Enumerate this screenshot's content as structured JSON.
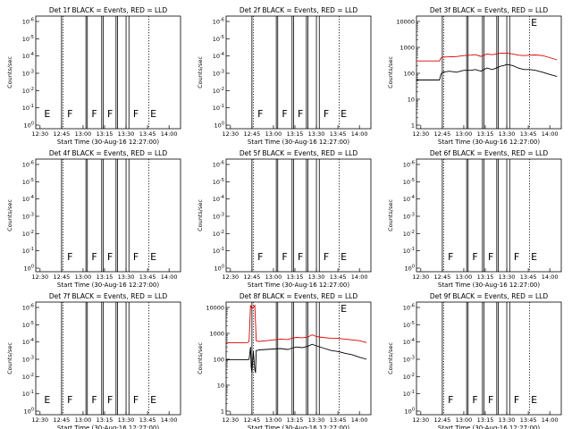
{
  "figure": {
    "start_time_label": "Start Time (30-Aug-16 12:27:00)",
    "ylabel": "Counts/sec",
    "x_ticks": [
      "12:30",
      "12:45",
      "13:00",
      "13:15",
      "13:30",
      "13:45",
      "14:00"
    ],
    "colors": {
      "events": "#000000",
      "lld": "#dd0000"
    }
  },
  "chart_data": [
    {
      "type": "line",
      "title": "Det 1f BLACK = Events, RED = LLD",
      "xlabel": "Start Time (30-Aug-16 12:27:00)",
      "ylabel": "Counts/sec",
      "x_ticks": [
        "12:30",
        "12:45",
        "13:00",
        "13:15",
        "13:30",
        "13:45",
        "14:00"
      ],
      "y_tick_labels": [
        "10^0",
        "10^-1",
        "10^-2",
        "10^-3",
        "10^-4",
        "10^-5",
        "10^-6"
      ],
      "y_scale": "log-empty",
      "attenuator_lines_at": [
        "12:45",
        "13:02",
        "13:03",
        "13:13",
        "13:14",
        "13:23",
        "13:24",
        "13:30",
        "13:32"
      ],
      "dotted_lines_at": [
        "12:45",
        "13:45"
      ],
      "state_labels": [
        {
          "text": "E",
          "at": "12:31"
        },
        {
          "text": "F",
          "at": "12:47"
        },
        {
          "text": "F",
          "at": "13:04"
        },
        {
          "text": "F",
          "at": "13:15"
        },
        {
          "text": "F",
          "at": "13:33"
        },
        {
          "text": "E",
          "at": "13:45"
        }
      ],
      "series": []
    },
    {
      "type": "line",
      "title": "Det 2f BLACK = Events, RED = LLD",
      "xlabel": "Start Time (30-Aug-16 12:27:00)",
      "ylabel": "Counts/sec",
      "x_ticks": [
        "12:30",
        "12:45",
        "13:00",
        "13:15",
        "13:30",
        "13:45",
        "14:00"
      ],
      "y_tick_labels": [
        "10^0",
        "10^-1",
        "10^-2",
        "10^-3",
        "10^-4",
        "10^-5",
        "10^-6"
      ],
      "y_scale": "log-empty",
      "attenuator_lines_at": [
        "12:45",
        "13:02",
        "13:03",
        "13:13",
        "13:14",
        "13:23",
        "13:24",
        "13:30",
        "13:32"
      ],
      "dotted_lines_at": [
        "12:45",
        "13:45"
      ],
      "state_labels": [
        {
          "text": "F",
          "at": "12:47"
        },
        {
          "text": "F",
          "at": "13:04"
        },
        {
          "text": "F",
          "at": "13:15"
        },
        {
          "text": "F",
          "at": "13:33"
        },
        {
          "text": "E",
          "at": "13:45"
        }
      ],
      "series": []
    },
    {
      "type": "line",
      "title": "Det 3f BLACK = Events, RED = LLD",
      "xlabel": "Start Time (30-Aug-16 12:27:00)",
      "ylabel": "Counts/sec",
      "x_ticks": [
        "12:30",
        "12:45",
        "13:00",
        "13:15",
        "13:30",
        "13:45",
        "14:00"
      ],
      "y_tick_labels": [
        "1",
        "10",
        "100",
        "1000",
        "10000"
      ],
      "y_scale": "log",
      "attenuator_lines_at": [
        "12:45",
        "13:02",
        "13:03",
        "13:13",
        "13:14",
        "13:23",
        "13:24",
        "13:30",
        "13:32"
      ],
      "dotted_lines_at": [
        "12:45",
        "13:45"
      ],
      "state_labels": [
        {
          "text": "E",
          "at": "13:45"
        }
      ],
      "series": [
        {
          "color": "#000000",
          "x": [
            "12:27",
            "12:35",
            "12:43",
            "12:44",
            "12:45",
            "12:50",
            "12:55",
            "13:00",
            "13:05",
            "13:08",
            "13:12",
            "13:16",
            "13:20",
            "13:24",
            "13:26",
            "13:28",
            "13:30",
            "13:34",
            "13:38",
            "13:42",
            "13:46",
            "13:50",
            "13:55",
            "14:00",
            "14:05"
          ],
          "values": [
            55,
            55,
            55,
            90,
            110,
            120,
            110,
            130,
            130,
            140,
            120,
            160,
            140,
            170,
            190,
            200,
            220,
            200,
            160,
            140,
            140,
            130,
            110,
            90,
            75
          ]
        },
        {
          "color": "#dd0000",
          "x": [
            "12:27",
            "12:35",
            "12:43",
            "12:44",
            "12:45",
            "12:50",
            "12:55",
            "13:00",
            "13:05",
            "13:08",
            "13:12",
            "13:16",
            "13:20",
            "13:24",
            "13:26",
            "13:28",
            "13:30",
            "13:34",
            "13:38",
            "13:42",
            "13:46",
            "13:50",
            "13:55",
            "14:00",
            "14:05"
          ],
          "values": [
            300,
            300,
            300,
            380,
            420,
            430,
            440,
            480,
            500,
            520,
            450,
            550,
            520,
            580,
            600,
            590,
            600,
            560,
            500,
            480,
            500,
            510,
            480,
            400,
            330
          ]
        }
      ]
    },
    {
      "type": "line",
      "title": "Det 4f BLACK = Events, RED = LLD",
      "xlabel": "Start Time (30-Aug-16 12:27:00)",
      "ylabel": "Counts/sec",
      "x_ticks": [
        "12:30",
        "12:45",
        "13:00",
        "13:15",
        "13:30",
        "13:45",
        "14:00"
      ],
      "y_tick_labels": [
        "10^0",
        "10^-1",
        "10^-2",
        "10^-3",
        "10^-4",
        "10^-5",
        "10^-6"
      ],
      "y_scale": "log-empty",
      "attenuator_lines_at": [
        "12:45",
        "13:02",
        "13:03",
        "13:13",
        "13:14",
        "13:23",
        "13:24",
        "13:30",
        "13:32"
      ],
      "dotted_lines_at": [
        "12:45",
        "13:45"
      ],
      "state_labels": [
        {
          "text": "F",
          "at": "12:47"
        },
        {
          "text": "F",
          "at": "13:04"
        },
        {
          "text": "F",
          "at": "13:15"
        },
        {
          "text": "F",
          "at": "13:33"
        },
        {
          "text": "E",
          "at": "13:45"
        }
      ],
      "series": []
    },
    {
      "type": "line",
      "title": "Det 5f BLACK = Events, RED = LLD",
      "xlabel": "Start Time (30-Aug-16 12:27:00)",
      "ylabel": "Counts/sec",
      "x_ticks": [
        "12:30",
        "12:45",
        "13:00",
        "13:15",
        "13:30",
        "13:45",
        "14:00"
      ],
      "y_tick_labels": [
        "10^0",
        "10^-1",
        "10^-2",
        "10^-3",
        "10^-4",
        "10^-5",
        "10^-6"
      ],
      "y_scale": "log-empty",
      "attenuator_lines_at": [
        "12:45",
        "13:02",
        "13:03",
        "13:13",
        "13:14",
        "13:23",
        "13:24",
        "13:30",
        "13:32"
      ],
      "dotted_lines_at": [
        "12:45",
        "13:45"
      ],
      "state_labels": [
        {
          "text": "F",
          "at": "12:47"
        },
        {
          "text": "F",
          "at": "13:04"
        },
        {
          "text": "F",
          "at": "13:15"
        },
        {
          "text": "F",
          "at": "13:33"
        },
        {
          "text": "E",
          "at": "13:45"
        }
      ],
      "series": []
    },
    {
      "type": "line",
      "title": "Det 6f BLACK = Events, RED = LLD",
      "xlabel": "Start Time (30-Aug-16 12:27:00)",
      "ylabel": "Counts/sec",
      "x_ticks": [
        "12:30",
        "12:45",
        "13:00",
        "13:15",
        "13:30",
        "13:45",
        "14:00"
      ],
      "y_tick_labels": [
        "10^0",
        "10^-1",
        "10^-2",
        "10^-3",
        "10^-4",
        "10^-5",
        "10^-6"
      ],
      "y_scale": "log-empty",
      "attenuator_lines_at": [
        "12:45",
        "13:02",
        "13:03",
        "13:13",
        "13:14",
        "13:23",
        "13:24",
        "13:30",
        "13:32"
      ],
      "dotted_lines_at": [
        "12:45",
        "13:45"
      ],
      "state_labels": [
        {
          "text": "F",
          "at": "12:47"
        },
        {
          "text": "F",
          "at": "13:04"
        },
        {
          "text": "F",
          "at": "13:15"
        },
        {
          "text": "F",
          "at": "13:33"
        },
        {
          "text": "E",
          "at": "13:45"
        }
      ],
      "series": []
    },
    {
      "type": "line",
      "title": "Det 7f BLACK = Events, RED = LLD",
      "xlabel": "Start Time (30-Aug-16 12:27:00)",
      "ylabel": "Counts/sec",
      "x_ticks": [
        "12:30",
        "12:45",
        "13:00",
        "13:15",
        "13:30",
        "13:45",
        "14:00"
      ],
      "y_tick_labels": [
        "10^0",
        "10^-1",
        "10^-2",
        "10^-3",
        "10^-4",
        "10^-5",
        "10^-6"
      ],
      "y_scale": "log-empty",
      "attenuator_lines_at": [
        "12:45",
        "13:02",
        "13:03",
        "13:13",
        "13:14",
        "13:23",
        "13:24",
        "13:30",
        "13:32"
      ],
      "dotted_lines_at": [
        "12:45",
        "13:45"
      ],
      "state_labels": [
        {
          "text": "E",
          "at": "12:31"
        },
        {
          "text": "F",
          "at": "12:47"
        },
        {
          "text": "F",
          "at": "13:04"
        },
        {
          "text": "F",
          "at": "13:15"
        },
        {
          "text": "F",
          "at": "13:33"
        },
        {
          "text": "E",
          "at": "13:45"
        }
      ],
      "series": []
    },
    {
      "type": "line",
      "title": "Det 8f BLACK = Events, RED = LLD",
      "xlabel": "Start Time (30-Aug-16 12:27:00)",
      "ylabel": "Counts/sec",
      "x_ticks": [
        "12:30",
        "12:45",
        "13:00",
        "13:15",
        "13:30",
        "13:45",
        "14:00"
      ],
      "y_tick_labels": [
        "1",
        "10",
        "100",
        "1000",
        "10000"
      ],
      "y_scale": "log",
      "attenuator_lines_at": [
        "12:45",
        "13:02",
        "13:03",
        "13:13",
        "13:14",
        "13:23",
        "13:24",
        "13:30",
        "13:32"
      ],
      "dotted_lines_at": [
        "12:45",
        "13:45"
      ],
      "state_labels": [
        {
          "text": "E",
          "at": "13:45"
        }
      ],
      "series": [
        {
          "color": "#000000",
          "x": [
            "12:27",
            "12:35",
            "12:42",
            "12:43",
            "12:44",
            "12:44.5",
            "12:45",
            "12:46",
            "12:47",
            "12:47.5",
            "12:48",
            "12:49",
            "12:50",
            "12:55",
            "13:00",
            "13:05",
            "13:10",
            "13:13",
            "13:16",
            "13:20",
            "13:24",
            "13:27",
            "13:30",
            "13:34",
            "13:40",
            "13:45",
            "13:50",
            "13:55",
            "14:00",
            "14:05"
          ],
          "values": [
            95,
            95,
            95,
            100,
            300,
            50,
            30,
            200,
            40,
            30,
            220,
            220,
            230,
            240,
            250,
            260,
            240,
            270,
            300,
            280,
            320,
            380,
            330,
            280,
            220,
            200,
            170,
            150,
            120,
            100
          ]
        },
        {
          "color": "#dd0000",
          "x": [
            "12:27",
            "12:35",
            "12:42",
            "12:43",
            "12:44",
            "12:45",
            "12:46",
            "12:47",
            "12:48",
            "12:49",
            "12:50",
            "12:55",
            "13:00",
            "13:05",
            "13:10",
            "13:13",
            "13:16",
            "13:20",
            "13:24",
            "13:27",
            "13:30",
            "13:34",
            "13:40",
            "13:45",
            "13:50",
            "13:55",
            "14:00",
            "14:05"
          ],
          "values": [
            430,
            430,
            440,
            500,
            12000,
            9000,
            10000,
            12000,
            520,
            500,
            490,
            520,
            560,
            600,
            580,
            650,
            700,
            680,
            720,
            880,
            760,
            700,
            650,
            640,
            600,
            560,
            520,
            440
          ]
        }
      ]
    },
    {
      "type": "line",
      "title": "Det 9f BLACK = Events, RED = LLD",
      "xlabel": "Start Time (30-Aug-16 12:27:00)",
      "ylabel": "Counts/sec",
      "x_ticks": [
        "12:30",
        "12:45",
        "13:00",
        "13:15",
        "13:30",
        "13:45",
        "14:00"
      ],
      "y_tick_labels": [
        "10^0",
        "10^-1",
        "10^-2",
        "10^-3",
        "10^-4",
        "10^-5",
        "10^-6"
      ],
      "y_scale": "log-empty",
      "attenuator_lines_at": [
        "12:45",
        "13:02",
        "13:03",
        "13:13",
        "13:14",
        "13:23",
        "13:24",
        "13:30",
        "13:32"
      ],
      "dotted_lines_at": [
        "12:45",
        "13:45"
      ],
      "state_labels": [
        {
          "text": "F",
          "at": "12:47"
        },
        {
          "text": "F",
          "at": "13:04"
        },
        {
          "text": "F",
          "at": "13:15"
        },
        {
          "text": "F",
          "at": "13:33"
        },
        {
          "text": "E",
          "at": "13:45"
        }
      ],
      "series": []
    }
  ]
}
